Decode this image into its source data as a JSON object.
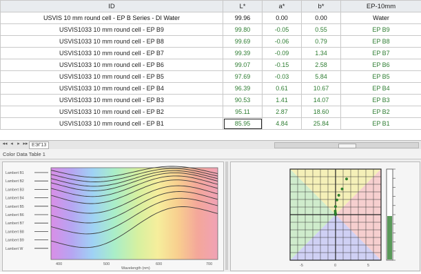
{
  "table": {
    "columns": [
      "ID",
      "L*",
      "a*",
      "b*",
      "EP-10mm"
    ],
    "rows": [
      {
        "id": "USVIS 10 mm round cell - EP B Series - DI Water",
        "L": "99.96",
        "a": "0.00",
        "b": "0.00",
        "ep": "Water"
      },
      {
        "id": "USVIS1033 10 mm round cell - EP B9",
        "L": "99.80",
        "a": "-0.05",
        "b": "0.55",
        "ep": "EP B9"
      },
      {
        "id": "USVIS1033 10 mm round cell - EP B8",
        "L": "99.69",
        "a": "-0.06",
        "b": "0.79",
        "ep": "EP B8"
      },
      {
        "id": "USVIS1033 10 mm round cell - EP B7",
        "L": "99.39",
        "a": "-0.09",
        "b": "1.34",
        "ep": "EP B7"
      },
      {
        "id": "USVIS1033 10 mm round cell - EP B6",
        "L": "99.07",
        "a": "-0.15",
        "b": "2.58",
        "ep": "EP B6"
      },
      {
        "id": "USVIS1033 10 mm round cell - EP B5",
        "L": "97.69",
        "a": "-0.03",
        "b": "5.84",
        "ep": "EP B5"
      },
      {
        "id": "USVIS1033 10 mm round cell - EP B4",
        "L": "96.39",
        "a": "0.61",
        "b": "10.67",
        "ep": "EP B4"
      },
      {
        "id": "USVIS1033 10 mm round cell - EP B3",
        "L": "90.53",
        "a": "1.41",
        "b": "14.07",
        "ep": "EP B3"
      },
      {
        "id": "USVIS1033 10 mm round cell - EP B2",
        "L": "95.11",
        "a": "2.87",
        "b": "18.60",
        "ep": "EP B2"
      },
      {
        "id": "USVIS1033 10 mm round cell - EP B1",
        "L": "85.95",
        "a": "4.84",
        "b": "25.84",
        "ep": "EP B1"
      }
    ]
  },
  "sheet_tab": "ЕЭГ13",
  "panel_tab_label": "Color Data Table 1",
  "colors": {
    "header_bg": "#e9ecef",
    "value_text": "#2e7d32",
    "curve": "#3a3a3a",
    "quadrant_yellow": "#f5f0b8",
    "quadrant_red": "#f6cfcf",
    "quadrant_green": "#cfeccc",
    "quadrant_blue": "#cfd0f4",
    "marker": "#2f8a2f"
  },
  "spectral_chart": {
    "legend": [
      "Lambert B1",
      "Lambert B2",
      "Lambert B3",
      "Lambert B4",
      "Lambert B5",
      "Lambert B6",
      "Lambert B7",
      "Lambert B8",
      "Lambert B9",
      "Lambert W"
    ],
    "x_ticks": [
      "400",
      "500",
      "600",
      "700"
    ],
    "xlabel": "Wavelength (nm)"
  },
  "ab_chart": {
    "x_ticks": [
      "-5",
      "0",
      "5"
    ],
    "y_ticks": [
      "0",
      "10",
      "20"
    ]
  }
}
